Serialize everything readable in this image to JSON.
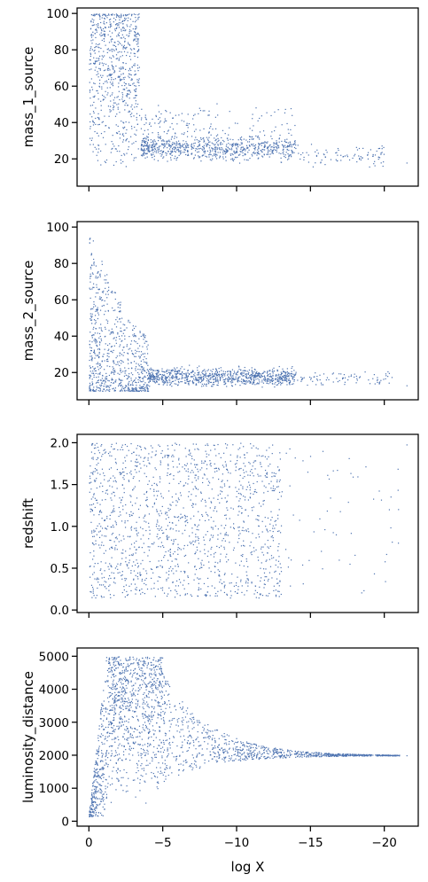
{
  "chart_data": [
    {
      "type": "scatter",
      "ylabel": "mass_1_source",
      "xlabel": "",
      "xlim": [
        0.8,
        -22.3
      ],
      "ylim": [
        5,
        103
      ],
      "xticks": [
        0,
        -5,
        -10,
        -15,
        -20
      ],
      "yticks": [
        20,
        40,
        60,
        80,
        100
      ],
      "ytick_labels": [
        "20",
        "40",
        "60",
        "80",
        "100"
      ],
      "show_xtick_labels": false,
      "color": "#4c72b0",
      "regions": [
        {
          "x": [
            0,
            -3.5
          ],
          "y": [
            15,
            100
          ],
          "density": 0.9,
          "note": "dense block saturating near 100"
        },
        {
          "x": [
            -3.5,
            -14
          ],
          "y": [
            17,
            50
          ],
          "density": 0.8,
          "note": "broad cloud concentrated 20-35"
        },
        {
          "x": [
            -14,
            -21.5
          ],
          "y": [
            17,
            40
          ],
          "density": 0.15,
          "note": "sparse tail"
        }
      ],
      "notable_points": [
        {
          "x": -21.5,
          "y": 18
        }
      ]
    },
    {
      "type": "scatter",
      "ylabel": "mass_2_source",
      "xlabel": "",
      "xlim": [
        0.8,
        -22.3
      ],
      "ylim": [
        5,
        103
      ],
      "xticks": [
        0,
        -5,
        -10,
        -15,
        -20
      ],
      "yticks": [
        20,
        40,
        60,
        80,
        100
      ],
      "ytick_labels": [
        "20",
        "40",
        "60",
        "80",
        "100"
      ],
      "show_xtick_labels": false,
      "color": "#4c72b0",
      "regions": [
        {
          "x": [
            0,
            -2
          ],
          "y": [
            10,
            98
          ],
          "density": 0.8,
          "note": "tall spike near x=0 to -2"
        },
        {
          "x": [
            -2,
            -4
          ],
          "y": [
            10,
            40
          ],
          "density": 0.7,
          "note": "falling ridge"
        },
        {
          "x": [
            -4,
            -14
          ],
          "y": [
            10,
            35
          ],
          "density": 0.8,
          "note": "broad cloud centred about 18"
        },
        {
          "x": [
            -14,
            -21.5
          ],
          "y": [
            10,
            30
          ],
          "density": 0.15,
          "note": "sparse tail"
        }
      ],
      "notable_points": [
        {
          "x": -21.5,
          "y": 13
        }
      ]
    },
    {
      "type": "scatter",
      "ylabel": "redshift",
      "xlabel": "",
      "xlim": [
        0.8,
        -22.3
      ],
      "ylim": [
        -0.03,
        2.1
      ],
      "xticks": [
        0,
        -5,
        -10,
        -15,
        -20
      ],
      "yticks": [
        0.0,
        0.5,
        1.0,
        1.5,
        2.0
      ],
      "ytick_labels": [
        "0.0",
        "0.5",
        "1.0",
        "1.5",
        "2.0"
      ],
      "show_xtick_labels": false,
      "color": "#4c72b0",
      "regions": [
        {
          "x": [
            0,
            -13
          ],
          "y": [
            0.15,
            2.0
          ],
          "density": 0.8,
          "note": "roughly uniform cloud"
        },
        {
          "x": [
            -13,
            -21.5
          ],
          "y": [
            0.15,
            2.0
          ],
          "density": 0.1,
          "note": "sparse points"
        }
      ],
      "notable_points": [
        {
          "x": -21.5,
          "y": 1.98
        }
      ]
    },
    {
      "type": "scatter",
      "ylabel": "luminosity_distance",
      "xlabel": "log X",
      "xlim": [
        0.8,
        -22.3
      ],
      "ylim": [
        -150,
        5250
      ],
      "xticks": [
        0,
        -5,
        -10,
        -15,
        -20
      ],
      "xtick_labels": [
        "0",
        "−5",
        "−10",
        "−15",
        "−20"
      ],
      "yticks": [
        0,
        1000,
        2000,
        3000,
        4000,
        5000
      ],
      "ytick_labels": [
        "0",
        "1000",
        "2000",
        "3000",
        "4000",
        "5000"
      ],
      "show_xtick_labels": true,
      "color": "#4c72b0",
      "regions": [
        {
          "x": [
            0,
            -1.2
          ],
          "y": [
            150,
            5000
          ],
          "density": 0.7,
          "note": "rising wedge from origin"
        },
        {
          "x": [
            -1.2,
            -5
          ],
          "y": [
            500,
            5000
          ],
          "density": 0.8,
          "note": "dense band saturating at 5000"
        },
        {
          "x": [
            -5,
            -21.5
          ],
          "y": [
            1900,
            5000
          ],
          "density": 0.7,
          "note": "funnel narrowing toward 2000"
        }
      ],
      "notable_points": [
        {
          "x": -21.5,
          "y": 2000
        },
        {
          "x": 0,
          "y": 150
        }
      ]
    }
  ]
}
